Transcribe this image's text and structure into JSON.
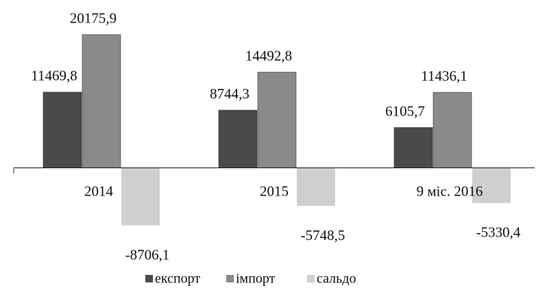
{
  "chart_data": {
    "type": "bar",
    "categories": [
      "2014",
      "2015",
      "9 міс. 2016"
    ],
    "series": [
      {
        "name": "експорт",
        "color": "#4a4a4a",
        "values": [
          11469.8,
          8744.3,
          6105.7
        ],
        "value_labels": [
          "11469,8",
          "8744,3",
          "6105,7"
        ]
      },
      {
        "name": "імпорт",
        "color": "#8a8a8a",
        "values": [
          20175.9,
          14492.8,
          11436.1
        ],
        "value_labels": [
          "20175,9",
          "14492,8",
          "11436,1"
        ]
      },
      {
        "name": "сальдо",
        "color": "#cfcfcf",
        "values": [
          -8706.1,
          -5748.5,
          -5330.4
        ],
        "value_labels": [
          "-8706,1",
          "-5748,5",
          "-5330,4"
        ]
      }
    ],
    "ylim": [
      -10000,
      22000
    ]
  }
}
